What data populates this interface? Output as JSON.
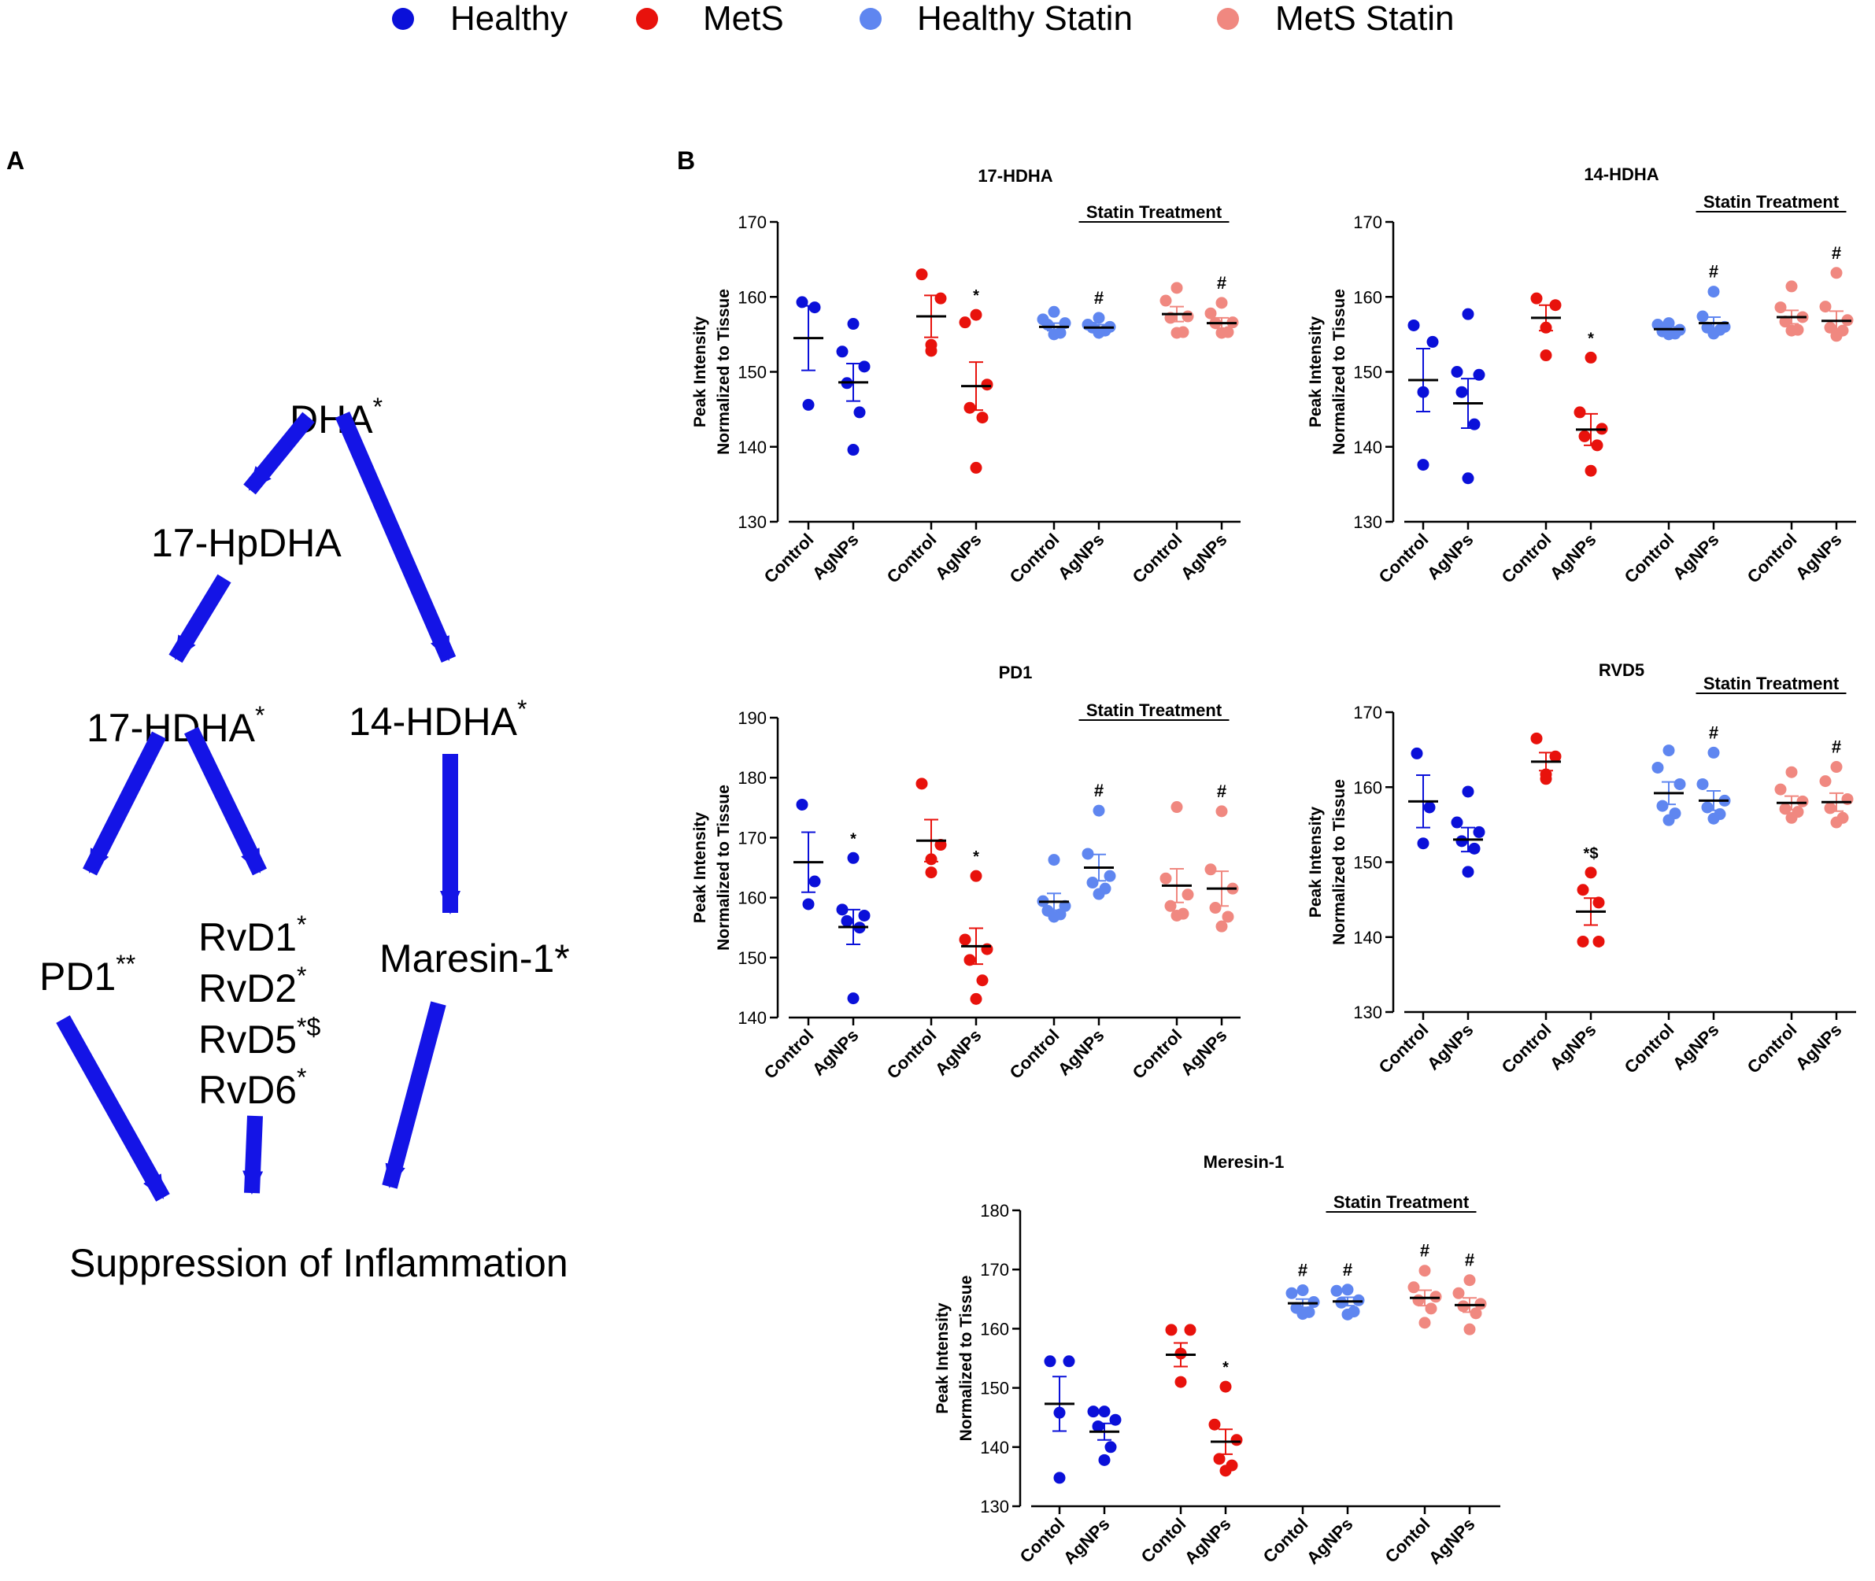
{
  "colors": {
    "healthy": "#0a10d9",
    "mets": "#e8120c",
    "healthy_statin": "#5f86f0",
    "mets_statin": "#f08880",
    "arrow": "#1414e6",
    "ink": "#000000"
  },
  "legend": {
    "items": [
      {
        "label": "Healthy",
        "color_key": "healthy"
      },
      {
        "label": "MetS",
        "color_key": "mets"
      },
      {
        "label": "Healthy Statin",
        "color_key": "healthy_statin"
      },
      {
        "label": "MetS Statin",
        "color_key": "mets_statin"
      }
    ]
  },
  "panel_a": {
    "letter": "A",
    "nodes": {
      "dha": {
        "label": "DHA",
        "sup": "*"
      },
      "hpdha17": {
        "label": "17-HpDHA",
        "sup": ""
      },
      "hdha17": {
        "label": "17-HDHA",
        "sup": "*"
      },
      "hdha14": {
        "label": "14-HDHA",
        "sup": "*"
      },
      "pd1": {
        "label": "PD1",
        "sup": "**"
      },
      "rvd1": {
        "label": "RvD1",
        "sup": "*"
      },
      "rvd2": {
        "label": "RvD2",
        "sup": "*"
      },
      "rvd5": {
        "label": "RvD5",
        "sup": "*$"
      },
      "rvd6": {
        "label": "RvD6",
        "sup": "*"
      },
      "maresin": {
        "label": "Maresin-1*",
        "sup": ""
      },
      "suppression": {
        "label": "Suppression of Inflammation",
        "sup": ""
      }
    }
  },
  "panel_b": {
    "letter": "B"
  },
  "chart_data": [
    {
      "type": "scatter",
      "title": "17-HDHA",
      "ylabel": [
        "Peak Intensity",
        "Normalized to Tissue"
      ],
      "ylim": [
        130,
        170
      ],
      "yticks": [
        130,
        140,
        150,
        160,
        170
      ],
      "statin_label": "Statin Treatment",
      "categories": [
        "Control",
        "AgNPs",
        "Control",
        "AgNPs",
        "Control",
        "AgNPs",
        "Control",
        "AgNPs"
      ],
      "groups": [
        {
          "color_key": "healthy",
          "points": [
            159.3,
            158.6,
            145.6
          ],
          "mean": 154.5,
          "sem": 4.3,
          "mark": ""
        },
        {
          "color_key": "healthy",
          "points": [
            156.4,
            152.7,
            150.7,
            148.5,
            144.6,
            139.6
          ],
          "mean": 148.6,
          "sem": 2.5,
          "mark": ""
        },
        {
          "color_key": "mets",
          "points": [
            163.0,
            159.8,
            153.6,
            152.8
          ],
          "mean": 157.4,
          "sem": 2.8,
          "mark": ""
        },
        {
          "color_key": "mets",
          "points": [
            157.6,
            156.6,
            148.3,
            145.2,
            143.9,
            137.2
          ],
          "mean": 148.1,
          "sem": 3.2,
          "mark": "*"
        },
        {
          "color_key": "healthy_statin",
          "points": [
            158.0,
            157.0,
            156.5,
            156.3,
            155.2,
            155.0
          ],
          "mean": 156.0,
          "sem": 0.5,
          "mark": ""
        },
        {
          "color_key": "healthy_statin",
          "points": [
            157.2,
            156.3,
            156.0,
            155.9,
            155.5,
            155.2
          ],
          "mean": 155.9,
          "sem": 0.4,
          "mark": "#"
        },
        {
          "color_key": "mets_statin",
          "points": [
            161.2,
            159.5,
            157.4,
            157.2,
            155.3,
            155.2
          ],
          "mean": 157.7,
          "sem": 1.0,
          "mark": ""
        },
        {
          "color_key": "mets_statin",
          "points": [
            159.2,
            157.8,
            156.6,
            156.5,
            155.3,
            155.2
          ],
          "mean": 156.5,
          "sem": 0.7,
          "mark": "#"
        }
      ]
    },
    {
      "type": "scatter",
      "title": "14-HDHA",
      "ylabel": [
        "Peak Intensity",
        "Normalized to Tissue"
      ],
      "ylim": [
        130,
        170
      ],
      "yticks": [
        130,
        140,
        150,
        160,
        170
      ],
      "statin_label": "Statin Treatment",
      "categories": [
        "Control",
        "AgNPs",
        "Control",
        "AgNPs",
        "Control",
        "AgNPs",
        "Control",
        "AgNPs"
      ],
      "groups": [
        {
          "color_key": "healthy",
          "points": [
            156.2,
            154.0,
            147.3,
            137.6
          ],
          "mean": 148.9,
          "sem": 4.2,
          "mark": ""
        },
        {
          "color_key": "healthy",
          "points": [
            157.7,
            150.0,
            149.6,
            147.3,
            143.0,
            135.8
          ],
          "mean": 145.8,
          "sem": 3.3,
          "mark": ""
        },
        {
          "color_key": "mets",
          "points": [
            159.8,
            158.9,
            155.9,
            152.2
          ],
          "mean": 157.2,
          "sem": 1.7,
          "mark": ""
        },
        {
          "color_key": "mets",
          "points": [
            151.9,
            144.6,
            142.4,
            141.4,
            140.2,
            136.8
          ],
          "mean": 142.3,
          "sem": 2.1,
          "mark": "*"
        },
        {
          "color_key": "healthy_statin",
          "points": [
            156.5,
            156.3,
            155.6,
            155.4,
            155.1,
            155.0
          ],
          "mean": 155.7,
          "sem": 0.3,
          "mark": ""
        },
        {
          "color_key": "healthy_statin",
          "points": [
            160.7,
            157.4,
            156.0,
            155.9,
            155.6,
            155.1
          ],
          "mean": 156.5,
          "sem": 0.8,
          "mark": "#"
        },
        {
          "color_key": "mets_statin",
          "points": [
            161.4,
            158.6,
            157.3,
            156.7,
            155.6,
            155.5
          ],
          "mean": 157.3,
          "sem": 0.9,
          "mark": ""
        },
        {
          "color_key": "mets_statin",
          "points": [
            163.2,
            158.7,
            156.9,
            155.9,
            155.5,
            154.8
          ],
          "mean": 156.8,
          "sem": 1.3,
          "mark": "#"
        }
      ]
    },
    {
      "type": "scatter",
      "title": "PD1",
      "ylabel": [
        "Peak Intensity",
        "Normalized to Tissue"
      ],
      "ylim": [
        140,
        190
      ],
      "yticks": [
        140,
        150,
        160,
        170,
        180,
        190
      ],
      "statin_label": "Statin Treatment",
      "categories": [
        "Control",
        "AgNPs",
        "Control",
        "AgNPs",
        "Control",
        "AgNPs",
        "Control",
        "AgNPs"
      ],
      "groups": [
        {
          "color_key": "healthy",
          "points": [
            175.5,
            162.7,
            158.9
          ],
          "mean": 165.9,
          "sem": 5.0,
          "mark": ""
        },
        {
          "color_key": "healthy",
          "points": [
            166.6,
            158.0,
            157.0,
            156.1,
            155.0,
            143.2
          ],
          "mean": 155.1,
          "sem": 2.9,
          "mark": "*"
        },
        {
          "color_key": "mets",
          "points": [
            179.0,
            168.8,
            166.4,
            164.2
          ],
          "mean": 169.5,
          "sem": 3.5,
          "mark": ""
        },
        {
          "color_key": "mets",
          "points": [
            163.6,
            153.0,
            151.4,
            149.6,
            146.2,
            143.1
          ],
          "mean": 151.9,
          "sem": 3.0,
          "mark": "*"
        },
        {
          "color_key": "healthy_statin",
          "points": [
            166.3,
            159.4,
            158.6,
            157.8,
            157.2,
            156.8
          ],
          "mean": 159.3,
          "sem": 1.4,
          "mark": ""
        },
        {
          "color_key": "healthy_statin",
          "points": [
            174.5,
            167.3,
            163.6,
            162.5,
            161.5,
            160.6
          ],
          "mean": 165.0,
          "sem": 2.2,
          "mark": "#"
        },
        {
          "color_key": "mets_statin",
          "points": [
            175.1,
            163.2,
            160.5,
            158.6,
            157.3,
            157.0
          ],
          "mean": 162.0,
          "sem": 2.8,
          "mark": ""
        },
        {
          "color_key": "mets_statin",
          "points": [
            174.4,
            164.7,
            161.5,
            158.3,
            156.8,
            155.2
          ],
          "mean": 161.5,
          "sem": 2.9,
          "mark": "#"
        }
      ]
    },
    {
      "type": "scatter",
      "title": "RVD5",
      "ylabel": [
        "Peak Intensity",
        "Normalized to Tissue"
      ],
      "ylim": [
        130,
        170
      ],
      "yticks": [
        130,
        140,
        150,
        160,
        170
      ],
      "statin_label": "Statin Treatment",
      "categories": [
        "Control",
        "AgNPs",
        "Control",
        "AgNPs",
        "Control",
        "AgNPs",
        "Control",
        "AgNPs"
      ],
      "groups": [
        {
          "color_key": "healthy",
          "points": [
            164.5,
            157.3,
            152.5
          ],
          "mean": 158.1,
          "sem": 3.5,
          "mark": ""
        },
        {
          "color_key": "healthy",
          "points": [
            159.4,
            155.3,
            154.0,
            152.8,
            151.8,
            148.7
          ],
          "mean": 153.0,
          "sem": 1.6,
          "mark": ""
        },
        {
          "color_key": "mets",
          "points": [
            166.5,
            164.1,
            161.7,
            161.1
          ],
          "mean": 163.4,
          "sem": 1.2,
          "mark": ""
        },
        {
          "color_key": "mets",
          "points": [
            148.6,
            146.3,
            144.6,
            139.4,
            139.4
          ],
          "mean": 143.4,
          "sem": 1.8,
          "mark": "*$"
        },
        {
          "color_key": "healthy_statin",
          "points": [
            164.9,
            162.6,
            160.4,
            157.5,
            156.5,
            155.6
          ],
          "mean": 159.2,
          "sem": 1.5,
          "mark": ""
        },
        {
          "color_key": "healthy_statin",
          "points": [
            164.6,
            160.4,
            158.2,
            157.3,
            156.4,
            155.8
          ],
          "mean": 158.2,
          "sem": 1.3,
          "mark": "#"
        },
        {
          "color_key": "mets_statin",
          "points": [
            162.0,
            159.7,
            158.1,
            157.1,
            156.7,
            155.9
          ],
          "mean": 157.9,
          "sem": 0.9,
          "mark": ""
        },
        {
          "color_key": "mets_statin",
          "points": [
            162.7,
            160.8,
            158.4,
            157.2,
            155.9,
            155.3
          ],
          "mean": 158.0,
          "sem": 1.2,
          "mark": "#"
        }
      ]
    },
    {
      "type": "scatter",
      "title": "Meresin-1",
      "ylabel": [
        "Peak Intensity",
        "Normalized to Tissue"
      ],
      "ylim": [
        130,
        180
      ],
      "yticks": [
        130,
        140,
        150,
        160,
        170,
        180
      ],
      "statin_label": "Statin Treatment",
      "categories": [
        "Contol",
        "AgNPs",
        "Contol",
        "AgNPs",
        "Contol",
        "AgNPs",
        "Contol",
        "AgNPs"
      ],
      "groups": [
        {
          "color_key": "healthy",
          "points": [
            154.5,
            154.5,
            145.8,
            134.8
          ],
          "mean": 147.3,
          "sem": 4.6,
          "mark": ""
        },
        {
          "color_key": "healthy",
          "points": [
            146.0,
            146.0,
            144.6,
            143.5,
            140.0,
            137.8
          ],
          "mean": 142.6,
          "sem": 1.4,
          "mark": ""
        },
        {
          "color_key": "mets",
          "points": [
            159.8,
            159.8,
            155.8,
            151.0
          ],
          "mean": 155.6,
          "sem": 2.0,
          "mark": ""
        },
        {
          "color_key": "mets",
          "points": [
            150.2,
            143.8,
            141.2,
            138.0,
            136.9,
            136.0
          ],
          "mean": 140.9,
          "sem": 2.1,
          "mark": "*"
        },
        {
          "color_key": "healthy_statin",
          "points": [
            166.5,
            166.0,
            164.5,
            163.5,
            162.8,
            162.5
          ],
          "mean": 164.3,
          "sem": 0.7,
          "mark": "#"
        },
        {
          "color_key": "healthy_statin",
          "points": [
            166.6,
            166.4,
            164.8,
            164.4,
            162.9,
            162.4
          ],
          "mean": 164.6,
          "sem": 0.7,
          "mark": "#"
        },
        {
          "color_key": "mets_statin",
          "points": [
            169.8,
            167.0,
            165.4,
            164.8,
            163.4,
            161.0
          ],
          "mean": 165.2,
          "sem": 1.3,
          "mark": "#"
        },
        {
          "color_key": "mets_statin",
          "points": [
            168.2,
            166.0,
            164.2,
            163.8,
            162.6,
            159.9
          ],
          "mean": 164.0,
          "sem": 1.2,
          "mark": "#"
        }
      ]
    }
  ]
}
